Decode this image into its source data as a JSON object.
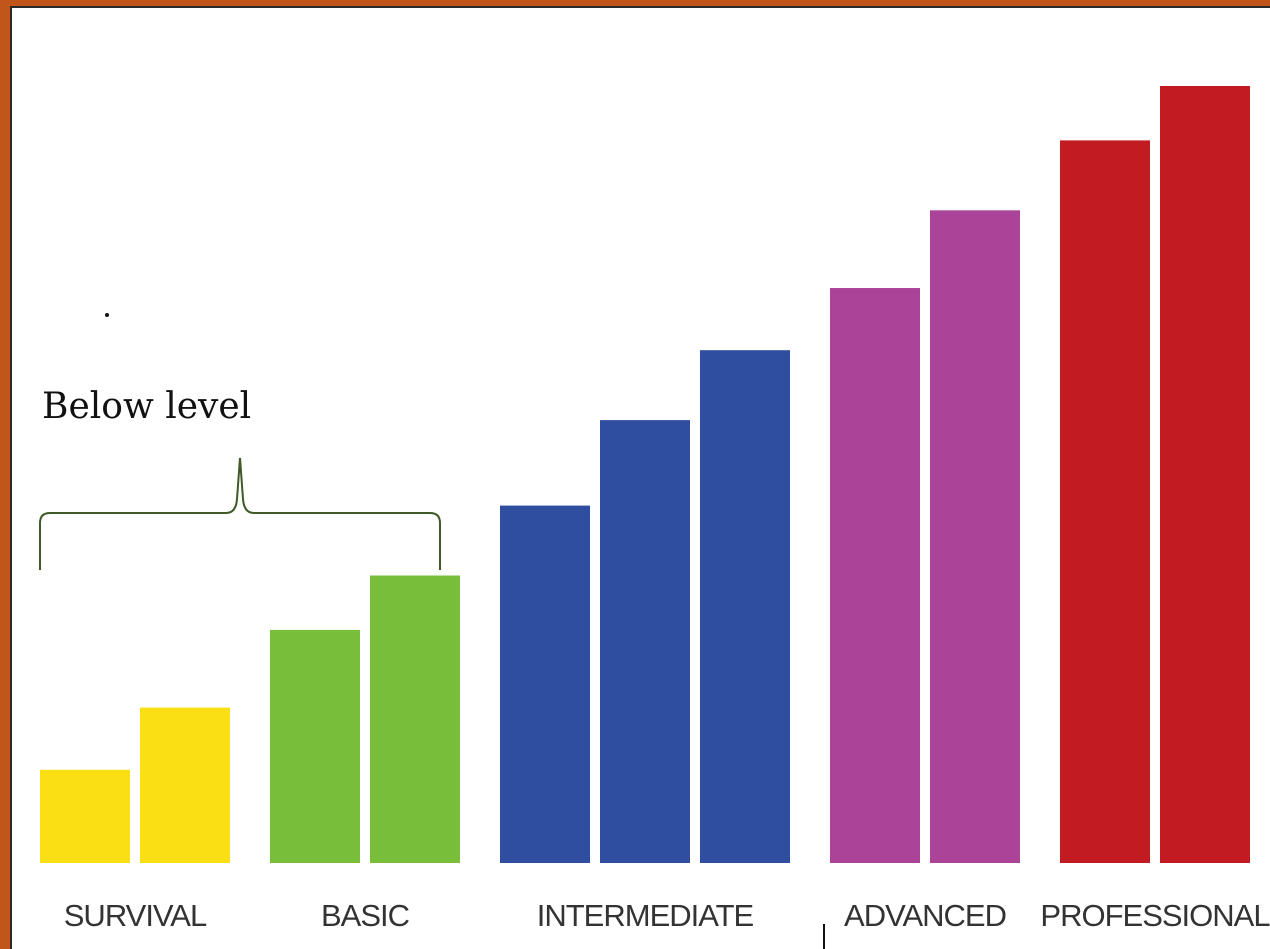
{
  "chart_data": {
    "type": "bar",
    "title": "",
    "xlabel": "",
    "ylabel": "",
    "ylim": [
      0,
      100
    ],
    "grid": false,
    "categories": [
      "SURVIVAL",
      "BASIC",
      "INTERMEDIATE",
      "ADVANCED",
      "PROFESSIONAL"
    ],
    "groups": [
      {
        "label": "SURVIVAL",
        "color": "#f9df13",
        "values": [
          12,
          20
        ]
      },
      {
        "label": "BASIC",
        "color": "#79be3a",
        "values": [
          30,
          37
        ]
      },
      {
        "label": "INTERMEDIATE",
        "color": "#304ea0",
        "values": [
          46,
          57,
          66
        ]
      },
      {
        "label": "ADVANCED",
        "color": "#ab4498",
        "values": [
          74,
          84
        ]
      },
      {
        "label": "PROFESSIONAL",
        "color": "#c21b22",
        "values": [
          93,
          100
        ]
      }
    ],
    "annotation": {
      "text": "Below level",
      "spans": [
        "SURVIVAL",
        "BASIC"
      ],
      "color": "#3f5a28"
    }
  }
}
